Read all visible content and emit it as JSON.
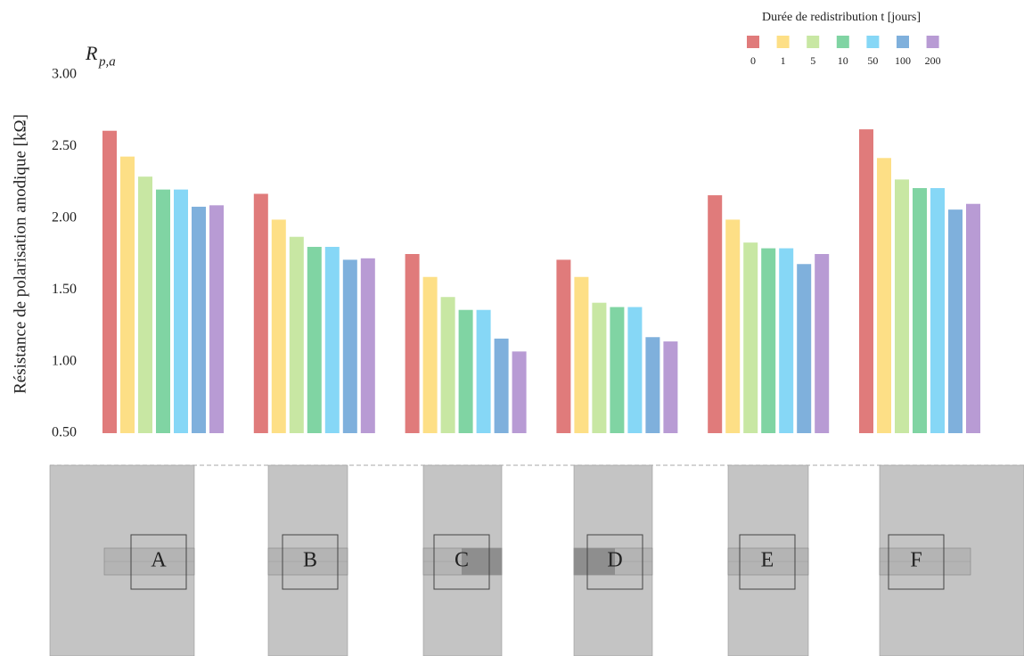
{
  "chart_data": {
    "type": "bar",
    "y_symbol": "R",
    "y_symbol_subscript": "p,a",
    "y_label": "Résistance de polarisation anodique [kΩ]",
    "legend_title": "Durée de redistribution t [jours]",
    "legend_position": "top-right",
    "categories": [
      "A",
      "B",
      "C",
      "D",
      "E",
      "F"
    ],
    "series": [
      {
        "name": "0",
        "color": "#e07b7b",
        "values": [
          2.61,
          2.17,
          1.75,
          1.71,
          2.16,
          2.62
        ]
      },
      {
        "name": "1",
        "color": "#fddf86",
        "values": [
          2.43,
          1.99,
          1.59,
          1.59,
          1.99,
          2.42
        ]
      },
      {
        "name": "5",
        "color": "#c8e7a3",
        "values": [
          2.29,
          1.87,
          1.45,
          1.41,
          1.83,
          2.27
        ]
      },
      {
        "name": "10",
        "color": "#80d4a3",
        "values": [
          2.2,
          1.8,
          1.36,
          1.38,
          1.79,
          2.21
        ]
      },
      {
        "name": "50",
        "color": "#86d7f6",
        "values": [
          2.2,
          1.8,
          1.36,
          1.38,
          1.79,
          2.21
        ]
      },
      {
        "name": "100",
        "color": "#7fb0dc",
        "values": [
          2.08,
          1.71,
          1.16,
          1.17,
          1.68,
          2.06
        ]
      },
      {
        "name": "200",
        "color": "#b89bd4",
        "values": [
          2.09,
          1.72,
          1.07,
          1.14,
          1.75,
          2.1
        ]
      }
    ],
    "ylim": [
      0.5,
      3.0
    ],
    "yticks": [
      {
        "value": 0.5,
        "label": "0.50"
      },
      {
        "value": 1.0,
        "label": "1.00"
      },
      {
        "value": 1.5,
        "label": "1.50"
      },
      {
        "value": 2.0,
        "label": "2.00"
      },
      {
        "value": 2.5,
        "label": "2.50"
      },
      {
        "value": 3.0,
        "label": "3.00"
      }
    ],
    "grid": false
  }
}
